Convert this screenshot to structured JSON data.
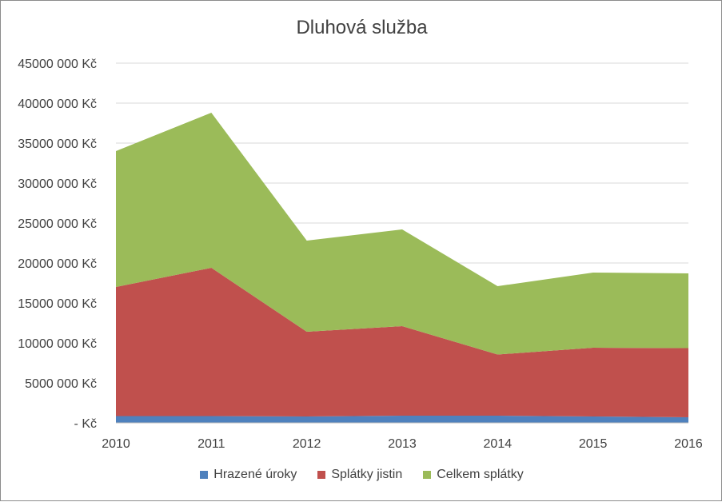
{
  "chart_data": {
    "type": "area",
    "stacked": true,
    "title": "Dluhová služba",
    "xlabel": "",
    "ylabel": "",
    "x": [
      "2010",
      "2011",
      "2012",
      "2013",
      "2014",
      "2015",
      "2016"
    ],
    "ylim": [
      0,
      45000000
    ],
    "y_ticks": [
      {
        "value": 0,
        "label": "-   Kč"
      },
      {
        "value": 5000000,
        "label": "5000 000 Kč"
      },
      {
        "value": 10000000,
        "label": "10000 000 Kč"
      },
      {
        "value": 15000000,
        "label": "15000 000 Kč"
      },
      {
        "value": 20000000,
        "label": "20000 000 Kč"
      },
      {
        "value": 25000000,
        "label": "25000 000 Kč"
      },
      {
        "value": 30000000,
        "label": "30000 000 Kč"
      },
      {
        "value": 35000000,
        "label": "35000 000 Kč"
      },
      {
        "value": 40000000,
        "label": "40000 000 Kč"
      },
      {
        "value": 45000000,
        "label": "45000 000 Kč"
      }
    ],
    "grid": true,
    "legend_position": "bottom",
    "series": [
      {
        "name": "Hrazené úroky",
        "color": "#4f81bd",
        "values": [
          850000,
          850000,
          800000,
          900000,
          900000,
          800000,
          700000
        ]
      },
      {
        "name": "Splátky jistin",
        "color": "#c0504d",
        "values": [
          16150000,
          18550000,
          10600000,
          11200000,
          7650000,
          8600000,
          8650000
        ]
      },
      {
        "name": "Celkem splátky",
        "color": "#9bbb59",
        "values": [
          17000000,
          19400000,
          11400000,
          12100000,
          8550000,
          9400000,
          9350000
        ]
      }
    ]
  }
}
